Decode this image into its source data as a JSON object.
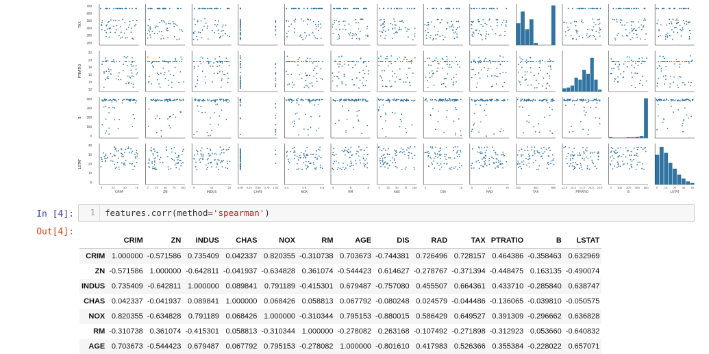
{
  "notebook": {
    "in_prompt": "In [4]:",
    "out_prompt": "Out[4]:",
    "line_number": "1",
    "code_prefix": "features.corr(method=",
    "code_string": "'spearman'",
    "code_suffix": ")"
  },
  "pairplot": {
    "row_labels": [
      "TAX",
      "PTRATIO",
      "B",
      "LSTAT"
    ],
    "col_labels": [
      "CRIM",
      "ZN",
      "INDUS",
      "CHAS",
      "NOX",
      "RM",
      "AGE",
      "DIS",
      "RAD",
      "TAX",
      "PTRATIO",
      "B",
      "LSTAT"
    ],
    "point_color": "#3274a1",
    "row_yticks": [
      [
        "700",
        "600",
        "500",
        "400",
        "300",
        "200"
      ],
      [
        "22",
        "20",
        "18",
        "16",
        "14",
        "12"
      ],
      [
        "400",
        "300",
        "200",
        "100",
        "0"
      ],
      [
        "40",
        "30",
        "20",
        "10",
        "0"
      ]
    ],
    "col_xticks": [
      [
        "0",
        "25",
        "50",
        "75"
      ],
      [
        "0",
        "25",
        "50",
        "75",
        "100"
      ],
      [
        "0",
        "10",
        "20"
      ],
      [
        "0.00",
        "0.25",
        "0.50",
        "0.75",
        "1.00"
      ],
      [
        "0.4",
        "0.6",
        "0.8"
      ],
      [
        "4",
        "6",
        "8"
      ],
      [
        "0",
        "25",
        "50",
        "75",
        "100"
      ],
      [
        "5",
        "10"
      ],
      [
        "0",
        "10",
        "20"
      ],
      [
        "200",
        "400",
        "600"
      ],
      [
        "12.5",
        "15.0",
        "17.5",
        "20.0",
        "22.5"
      ],
      [
        "0",
        "100",
        "200",
        "300",
        "400"
      ],
      [
        "0",
        "10",
        "20",
        "30",
        "40"
      ]
    ]
  },
  "table": {
    "columns": [
      "CRIM",
      "ZN",
      "INDUS",
      "CHAS",
      "NOX",
      "RM",
      "AGE",
      "DIS",
      "RAD",
      "TAX",
      "PTRATIO",
      "B",
      "LSTAT"
    ],
    "rows": [
      {
        "label": "CRIM",
        "values": [
          "1.000000",
          "-0.571586",
          "0.735409",
          "0.042337",
          "0.820355",
          "-0.310738",
          "0.703673",
          "-0.744381",
          "0.726496",
          "0.728157",
          "0.464386",
          "-0.358463",
          "0.632969"
        ]
      },
      {
        "label": "ZN",
        "values": [
          "-0.571586",
          "1.000000",
          "-0.642811",
          "-0.041937",
          "-0.634828",
          "0.361074",
          "-0.544423",
          "0.614627",
          "-0.278767",
          "-0.371394",
          "-0.448475",
          "0.163135",
          "-0.490074"
        ]
      },
      {
        "label": "INDUS",
        "values": [
          "0.735409",
          "-0.642811",
          "1.000000",
          "0.089841",
          "0.791189",
          "-0.415301",
          "0.679487",
          "-0.757080",
          "0.455507",
          "0.664361",
          "0.433710",
          "-0.285840",
          "0.638747"
        ]
      },
      {
        "label": "CHAS",
        "values": [
          "0.042337",
          "-0.041937",
          "0.089841",
          "1.000000",
          "0.068426",
          "0.058813",
          "0.067792",
          "-0.080248",
          "0.024579",
          "-0.044486",
          "-0.136065",
          "-0.039810",
          "-0.050575"
        ]
      },
      {
        "label": "NOX",
        "values": [
          "0.820355",
          "-0.634828",
          "0.791189",
          "0.068426",
          "1.000000",
          "-0.310344",
          "0.795153",
          "-0.880015",
          "0.586429",
          "0.649527",
          "0.391309",
          "-0.296662",
          "0.636828"
        ]
      },
      {
        "label": "RM",
        "values": [
          "-0.310738",
          "0.361074",
          "-0.415301",
          "0.058813",
          "-0.310344",
          "1.000000",
          "-0.278082",
          "0.263168",
          "-0.107492",
          "-0.271898",
          "-0.312923",
          "0.053660",
          "-0.640832"
        ]
      },
      {
        "label": "AGE",
        "values": [
          "0.703673",
          "-0.544423",
          "0.679487",
          "0.067792",
          "0.795153",
          "-0.278082",
          "1.000000",
          "-0.801610",
          "0.417983",
          "0.526366",
          "0.355384",
          "-0.228022",
          "0.657071"
        ]
      }
    ]
  }
}
